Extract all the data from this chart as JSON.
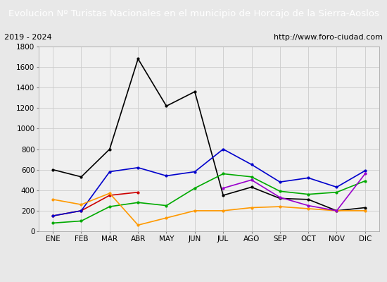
{
  "title": "Evolucion Nº Turistas Nacionales en el municipio de Horcajo de la Sierra-Aoslos",
  "subtitle_left": "2019 - 2024",
  "subtitle_right": "http://www.foro-ciudad.com",
  "months": [
    "ENE",
    "FEB",
    "MAR",
    "ABR",
    "MAY",
    "JUN",
    "JUL",
    "AGO",
    "SEP",
    "OCT",
    "NOV",
    "DIC"
  ],
  "ylim": [
    0,
    1800
  ],
  "yticks": [
    0,
    200,
    400,
    600,
    800,
    1000,
    1200,
    1400,
    1600,
    1800
  ],
  "series": {
    "2024": {
      "color": "#cc0000",
      "data": [
        150,
        200,
        350,
        380,
        null,
        null,
        null,
        null,
        null,
        null,
        null,
        null
      ]
    },
    "2023": {
      "color": "#000000",
      "data": [
        600,
        530,
        800,
        1680,
        1220,
        1360,
        350,
        430,
        320,
        310,
        200,
        230
      ]
    },
    "2022": {
      "color": "#0000cc",
      "data": [
        150,
        200,
        580,
        620,
        540,
        580,
        800,
        650,
        480,
        520,
        430,
        590
      ]
    },
    "2021": {
      "color": "#00aa00",
      "data": [
        80,
        100,
        240,
        280,
        250,
        420,
        560,
        530,
        390,
        360,
        380,
        490
      ]
    },
    "2020": {
      "color": "#ff9900",
      "data": [
        310,
        260,
        370,
        60,
        130,
        200,
        200,
        230,
        240,
        220,
        200,
        200
      ]
    },
    "2019": {
      "color": "#9900cc",
      "data": [
        null,
        null,
        null,
        null,
        null,
        null,
        420,
        500,
        330,
        250,
        200,
        560
      ]
    }
  },
  "background_color": "#e8e8e8",
  "plot_bg_color": "#f0f0f0",
  "title_bg_color": "#4d9cdb",
  "title_color": "#ffffff",
  "subtitle_bg_color": "#e0e0e0",
  "grid_color": "#cccccc",
  "title_fontsize": 9.5,
  "subtitle_fontsize": 8,
  "tick_fontsize": 7.5,
  "legend_fontsize": 7.5
}
